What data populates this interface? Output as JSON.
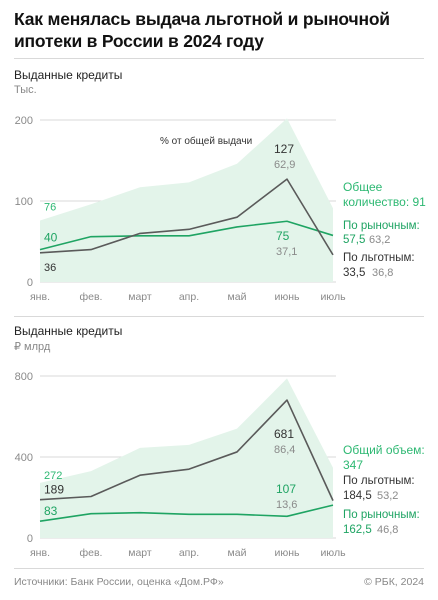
{
  "title": "Как менялась выдача льготной и рыночной ипотеки в России в 2024 году",
  "colors": {
    "total_area": "#e3f4ea",
    "market": "#1fa463",
    "subsidized": "#5a5a5a",
    "grid": "#d9d9d9",
    "axis_text": "#8a8a8a",
    "green_text": "#2db872",
    "dark_text": "#333333"
  },
  "footer": {
    "source": "Источники: Банк России, оценка «Дом.РФ»",
    "copyright": "© РБК, 2024"
  },
  "chart_data": [
    {
      "type": "line",
      "title": "Выданные кредиты",
      "unit": "Тыс.",
      "categories": [
        "янв.",
        "фев.",
        "март",
        "апр.",
        "май",
        "июнь",
        "июль"
      ],
      "ylim": [
        0,
        200
      ],
      "yticks": [
        "0",
        "100",
        "200"
      ],
      "series": [
        {
          "name": "Общее количество",
          "kind": "area",
          "values": [
            76,
            96,
            117,
            123,
            146,
            202,
            91
          ]
        },
        {
          "name": "По рыночным",
          "kind": "line",
          "values": [
            40,
            56,
            57,
            57,
            68,
            75,
            57.5
          ]
        },
        {
          "name": "По льготным",
          "kind": "line",
          "values": [
            36,
            40,
            60,
            65,
            80,
            127,
            33.5
          ]
        }
      ],
      "annotations": {
        "share_note": "% от общей выдачи",
        "start_total": "76",
        "start_market": "40",
        "start_subsidized": "36",
        "peak_subsidized": "127",
        "peak_subsidized_pct": "62,9",
        "peak_market": "75",
        "peak_market_pct": "37,1"
      },
      "end_labels": {
        "total_line1": "Общее",
        "total_line2": "количество: 91",
        "market_label": "По рыночным:",
        "market_value": "57,5",
        "market_pct": "63,2",
        "subsidized_label": "По льготным:",
        "subsidized_value": "33,5",
        "subsidized_pct": "36,8"
      }
    },
    {
      "type": "line",
      "title": "Выданные кредиты",
      "unit": "₽ млрд",
      "categories": [
        "янв.",
        "фев.",
        "март",
        "апр.",
        "май",
        "июнь",
        "июль"
      ],
      "ylim": [
        0,
        800
      ],
      "yticks": [
        "0",
        "400",
        "800"
      ],
      "series": [
        {
          "name": "Общий объем",
          "kind": "area",
          "values": [
            272,
            330,
            445,
            460,
            540,
            788,
            347
          ]
        },
        {
          "name": "По рыночным",
          "kind": "line",
          "values": [
            83,
            120,
            125,
            117,
            117,
            107,
            162.5
          ]
        },
        {
          "name": "По льготным",
          "kind": "line",
          "values": [
            189,
            205,
            310,
            340,
            425,
            681,
            184.5
          ]
        }
      ],
      "annotations": {
        "start_total": "272",
        "start_market": "83",
        "start_subsidized": "189",
        "peak_subsidized": "681",
        "peak_subsidized_pct": "86,4",
        "peak_market": "107",
        "peak_market_pct": "13,6"
      },
      "end_labels": {
        "total_line1": "Общий объем:",
        "total_line2": "347",
        "subsidized_label": "По льготным:",
        "subsidized_value": "184,5",
        "subsidized_pct": "53,2",
        "market_label": "По рыночным:",
        "market_value": "162,5",
        "market_pct": "46,8"
      }
    }
  ]
}
